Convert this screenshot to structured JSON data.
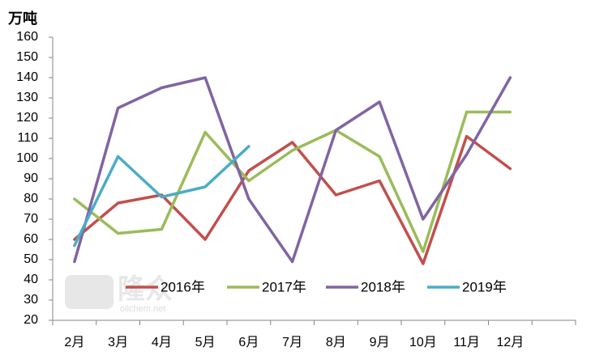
{
  "chart_data": {
    "type": "line",
    "y_label": "万吨",
    "categories": [
      "2月",
      "3月",
      "4月",
      "5月",
      "6月",
      "7月",
      "8月",
      "9月",
      "10月",
      "11月",
      "12月",
      null
    ],
    "series": [
      {
        "name": "2016年",
        "color": "#c0504d",
        "values": [
          60,
          78,
          82,
          60,
          94,
          108,
          82,
          89,
          48,
          111,
          95,
          null
        ]
      },
      {
        "name": "2017年",
        "color": "#9bbb59",
        "values": [
          80,
          63,
          65,
          113,
          89,
          104,
          114,
          101,
          54,
          123,
          123,
          null
        ]
      },
      {
        "name": "2018年",
        "color": "#8064a2",
        "values": [
          49,
          125,
          135,
          140,
          80,
          49,
          114,
          128,
          70,
          102,
          140,
          null
        ]
      },
      {
        "name": "2019年",
        "color": "#4bacc6",
        "values": [
          57,
          101,
          81,
          86,
          106,
          null,
          null,
          null,
          null,
          null,
          null,
          null
        ]
      }
    ],
    "ylim": [
      20,
      160
    ],
    "yticks": [
      20,
      30,
      40,
      50,
      60,
      70,
      80,
      90,
      100,
      110,
      120,
      130,
      140,
      150,
      160
    ],
    "grid": false,
    "legend": "bottom",
    "watermark": {
      "brand": "隆众",
      "site": "oilchem.net"
    }
  }
}
